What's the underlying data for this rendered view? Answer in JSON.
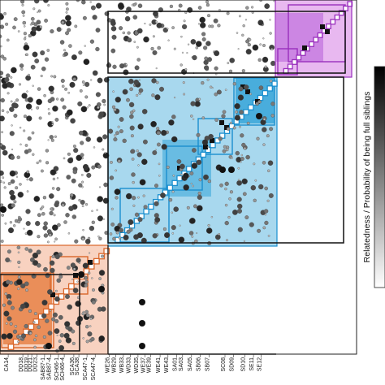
{
  "chart_data": {
    "type": "heatmap",
    "title": "",
    "xlabel": "",
    "ylabel": "",
    "colorbar": {
      "label": "Relatedness / Probability of being full siblings",
      "range": [
        0,
        1
      ],
      "colors": [
        "#ffffff",
        "#000000"
      ]
    },
    "group_colors": {
      "orange_fill": "#f8d2c0",
      "orange_strong": "#e8864e",
      "orange_border": "#d9662a",
      "blue_fill": "#a8d8ee",
      "blue_strong": "#2a9fd6",
      "blue_border": "#1a8fcf",
      "purple_fill": "#e8b8f0",
      "purple_strong": "#c070dd",
      "purple_border": "#9a2fbd"
    },
    "x_tick_labels": [
      "CA14",
      "DD18",
      "DD19",
      "DD21",
      "DD23",
      "SAB87-1",
      "SAB87-4",
      "SCH66-1",
      "SCH66-4",
      "SCA36",
      "SCA38",
      "SCA47-1",
      "SCA47-4",
      "WE26",
      "WB29",
      "WB33",
      "WD33",
      "WD35",
      "WE37",
      "WE39",
      "WE41",
      "WE43",
      "SA01",
      "SA03",
      "SA05",
      "SB06",
      "SB07",
      "SC08",
      "SD09",
      "SD10",
      "SE11",
      "SE12"
    ],
    "x_tick_positions": [
      0.014,
      0.055,
      0.07,
      0.08,
      0.094,
      0.116,
      0.133,
      0.155,
      0.171,
      0.198,
      0.212,
      0.235,
      0.258,
      0.297,
      0.315,
      0.337,
      0.357,
      0.378,
      0.397,
      0.414,
      0.44,
      0.462,
      0.486,
      0.503,
      0.528,
      0.552,
      0.578,
      0.622,
      0.646,
      0.678,
      0.702,
      0.723
    ],
    "groups": [
      {
        "name": "orange",
        "box_fraction": [
          0.0,
          0.27
        ]
      },
      {
        "name": "blue",
        "box_fraction": [
          0.27,
          0.72
        ]
      },
      {
        "name": "purple",
        "box_fraction": [
          0.72,
          1.0
        ]
      }
    ]
  }
}
